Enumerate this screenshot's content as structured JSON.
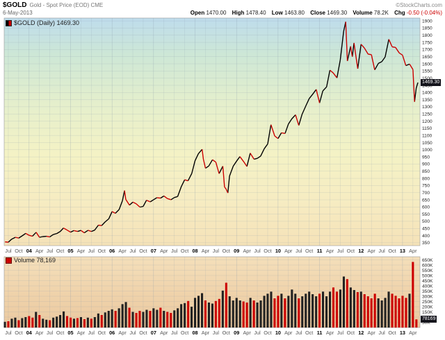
{
  "header": {
    "symbol": "$GOLD",
    "description": "Gold - Spot Price (EOD) CME",
    "copyright": "©StockCharts.com",
    "date": "6-May-2013",
    "quote": [
      {
        "label": "Open",
        "value": "1470.00"
      },
      {
        "label": "High",
        "value": "1478.40"
      },
      {
        "label": "Low",
        "value": "1463.80"
      },
      {
        "label": "Close",
        "value": "1469.30"
      },
      {
        "label": "Volume",
        "value": "78.2K"
      },
      {
        "label": "Chg",
        "value": "-0.50 (-0.04%)"
      }
    ]
  },
  "main_chart": {
    "legend": "$GOLD (Daily) 1469.30",
    "last_price_label": "1469.30"
  },
  "volume_chart": {
    "legend": "Volume 78,169",
    "last_volume_label": "78169"
  },
  "colors": {
    "up": "#000000",
    "down": "#cc0000",
    "grid": "#8899aa",
    "axis_text": "#222222",
    "tick_text": "#555555",
    "main_gradient": [
      [
        "0%",
        "#bedcec"
      ],
      [
        "16%",
        "#cde7d6"
      ],
      [
        "38%",
        "#e5efcc"
      ],
      [
        "60%",
        "#f4f2c5"
      ],
      [
        "80%",
        "#f6ecc2"
      ],
      [
        "100%",
        "#f5e2b8"
      ]
    ],
    "volume_gradient": [
      [
        "0%",
        "#f4dfba"
      ],
      [
        "55%",
        "#efd2aa"
      ],
      [
        "100%",
        "#eac9a0"
      ]
    ]
  },
  "chart_data": [
    {
      "type": "line",
      "title": "$GOLD (Daily)",
      "name": "Gold Spot Price close",
      "xlim": [
        2003.4,
        2013.42
      ],
      "ylim": [
        330,
        1920
      ],
      "ytick": 50,
      "ytick_min": 350,
      "ytick_max": 1900,
      "last": 1469.3,
      "x": [
        2003.42,
        2003.5,
        2003.58,
        2003.67,
        2003.75,
        2003.83,
        2003.92,
        2004.0,
        2004.08,
        2004.17,
        2004.25,
        2004.33,
        2004.42,
        2004.5,
        2004.58,
        2004.67,
        2004.75,
        2004.83,
        2004.92,
        2005.0,
        2005.08,
        2005.17,
        2005.25,
        2005.33,
        2005.42,
        2005.5,
        2005.58,
        2005.67,
        2005.75,
        2005.83,
        2005.92,
        2006.0,
        2006.08,
        2006.17,
        2006.25,
        2006.3,
        2006.33,
        2006.42,
        2006.5,
        2006.58,
        2006.67,
        2006.75,
        2006.83,
        2006.92,
        2007.0,
        2007.08,
        2007.17,
        2007.25,
        2007.33,
        2007.42,
        2007.5,
        2007.58,
        2007.67,
        2007.75,
        2007.83,
        2007.92,
        2008.0,
        2008.08,
        2008.17,
        2008.2,
        2008.25,
        2008.33,
        2008.42,
        2008.5,
        2008.58,
        2008.67,
        2008.71,
        2008.75,
        2008.79,
        2008.83,
        2008.92,
        2009.0,
        2009.08,
        2009.17,
        2009.25,
        2009.33,
        2009.42,
        2009.5,
        2009.58,
        2009.67,
        2009.75,
        2009.83,
        2009.92,
        2010.0,
        2010.08,
        2010.17,
        2010.25,
        2010.33,
        2010.42,
        2010.5,
        2010.58,
        2010.67,
        2010.75,
        2010.83,
        2010.92,
        2011.0,
        2011.08,
        2011.17,
        2011.25,
        2011.33,
        2011.42,
        2011.5,
        2011.58,
        2011.63,
        2011.67,
        2011.75,
        2011.79,
        2011.83,
        2011.92,
        2012.0,
        2012.08,
        2012.17,
        2012.25,
        2012.33,
        2012.42,
        2012.5,
        2012.58,
        2012.67,
        2012.75,
        2012.83,
        2012.92,
        2013.0,
        2013.08,
        2013.17,
        2013.25,
        2013.29,
        2013.33,
        2013.37
      ],
      "values": [
        356,
        354,
        375,
        388,
        383,
        398,
        416,
        402,
        396,
        423,
        388,
        393,
        395,
        391,
        407,
        415,
        429,
        453,
        438,
        424,
        435,
        429,
        436,
        419,
        437,
        429,
        438,
        473,
        470,
        495,
        517,
        568,
        556,
        582,
        644,
        715,
        653,
        613,
        634,
        623,
        599,
        604,
        647,
        636,
        651,
        665,
        662,
        677,
        659,
        651,
        666,
        673,
        743,
        790,
        783,
        834,
        923,
        972,
        1003,
        934,
        871,
        886,
        930,
        913,
        833,
        885,
        740,
        724,
        698,
        816,
        885,
        920,
        952,
        917,
        883,
        976,
        934,
        940,
        955,
        1008,
        1040,
        1175,
        1096,
        1078,
        1118,
        1114,
        1180,
        1215,
        1244,
        1170,
        1248,
        1307,
        1357,
        1386,
        1421,
        1327,
        1411,
        1439,
        1556,
        1536,
        1502,
        1628,
        1826,
        1894,
        1620,
        1722,
        1650,
        1746,
        1566,
        1737,
        1711,
        1668,
        1664,
        1558,
        1604,
        1615,
        1648,
        1771,
        1719,
        1715,
        1676,
        1661,
        1588,
        1598,
        1560,
        1335,
        1430,
        1469.3
      ],
      "xticks": [
        {
          "t": 2003.5,
          "label": "Jul"
        },
        {
          "t": 2003.75,
          "label": "Oct"
        },
        {
          "t": 2004.0,
          "label": "04"
        },
        {
          "t": 2004.25,
          "label": "Apr"
        },
        {
          "t": 2004.5,
          "label": "Jul"
        },
        {
          "t": 2004.75,
          "label": "Oct"
        },
        {
          "t": 2005.0,
          "label": "05"
        },
        {
          "t": 2005.25,
          "label": "Apr"
        },
        {
          "t": 2005.5,
          "label": "Jul"
        },
        {
          "t": 2005.75,
          "label": "Oct"
        },
        {
          "t": 2006.0,
          "label": "06"
        },
        {
          "t": 2006.25,
          "label": "Apr"
        },
        {
          "t": 2006.5,
          "label": "Jul"
        },
        {
          "t": 2006.75,
          "label": "Oct"
        },
        {
          "t": 2007.0,
          "label": "07"
        },
        {
          "t": 2007.25,
          "label": "Apr"
        },
        {
          "t": 2007.5,
          "label": "Jul"
        },
        {
          "t": 2007.75,
          "label": "Oct"
        },
        {
          "t": 2008.0,
          "label": "08"
        },
        {
          "t": 2008.25,
          "label": "Apr"
        },
        {
          "t": 2008.5,
          "label": "Jul"
        },
        {
          "t": 2008.75,
          "label": "Oct"
        },
        {
          "t": 2009.0,
          "label": "09"
        },
        {
          "t": 2009.25,
          "label": "Apr"
        },
        {
          "t": 2009.5,
          "label": "Jul"
        },
        {
          "t": 2009.75,
          "label": "Oct"
        },
        {
          "t": 2010.0,
          "label": "10"
        },
        {
          "t": 2010.25,
          "label": "Apr"
        },
        {
          "t": 2010.5,
          "label": "Jul"
        },
        {
          "t": 2010.75,
          "label": "Oct"
        },
        {
          "t": 2011.0,
          "label": "11"
        },
        {
          "t": 2011.25,
          "label": "Apr"
        },
        {
          "t": 2011.5,
          "label": "Jul"
        },
        {
          "t": 2011.75,
          "label": "Oct"
        },
        {
          "t": 2012.0,
          "label": "12"
        },
        {
          "t": 2012.25,
          "label": "Apr"
        },
        {
          "t": 2012.5,
          "label": "Jul"
        },
        {
          "t": 2012.75,
          "label": "Oct"
        },
        {
          "t": 2013.0,
          "label": "13"
        },
        {
          "t": 2013.25,
          "label": "Apr"
        }
      ]
    },
    {
      "type": "bar",
      "title": "Volume",
      "x_start": 2003.417,
      "ylim": [
        0,
        680
      ],
      "ytick": 50,
      "ytick_min": 50,
      "ytick_max": 650,
      "unit": "K",
      "last": 78,
      "values": [
        55,
        60,
        85,
        95,
        70,
        90,
        100,
        110,
        95,
        150,
        120,
        85,
        75,
        70,
        95,
        105,
        120,
        155,
        110,
        95,
        85,
        90,
        100,
        80,
        95,
        85,
        100,
        135,
        120,
        145,
        160,
        175,
        160,
        185,
        225,
        245,
        190,
        150,
        140,
        160,
        150,
        170,
        160,
        185,
        170,
        190,
        160,
        150,
        140,
        165,
        185,
        225,
        235,
        255,
        200,
        285,
        305,
        330,
        260,
        240,
        230,
        255,
        275,
        355,
        430,
        300,
        260,
        285,
        260,
        250,
        240,
        285,
        260,
        240,
        260,
        305,
        325,
        345,
        280,
        305,
        325,
        280,
        305,
        365,
        325,
        280,
        300,
        325,
        345,
        320,
        300,
        325,
        345,
        300,
        345,
        385,
        345,
        365,
        490,
        465,
        385,
        360,
        340,
        345,
        320,
        300,
        280,
        325,
        280,
        260,
        285,
        345,
        325,
        305,
        280,
        305,
        285,
        325,
        630,
        78
      ]
    }
  ]
}
